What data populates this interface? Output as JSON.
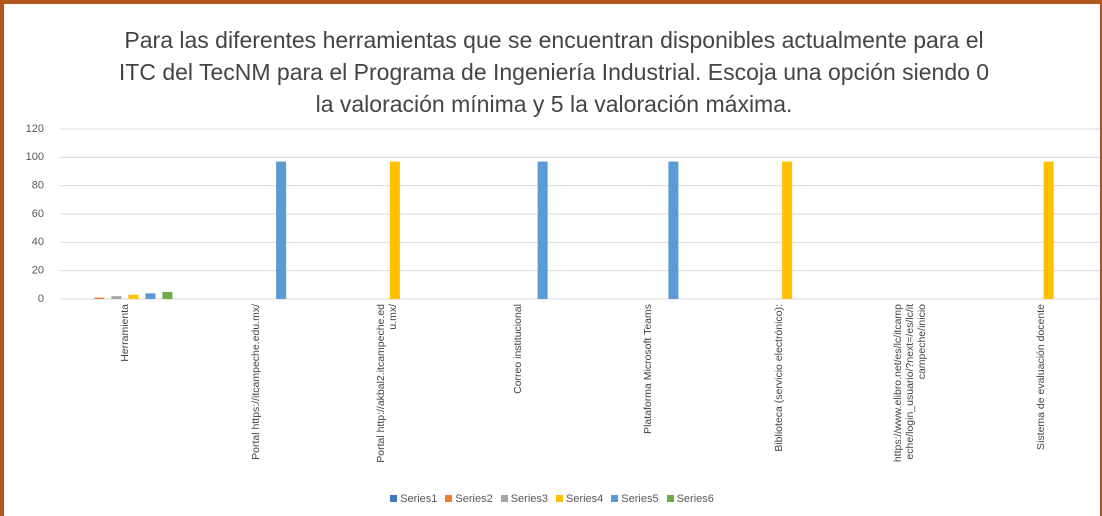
{
  "chart_data": {
    "type": "bar",
    "title": "Para las diferentes herramientas que se encuentran disponibles actualmente para el ITC del TecNM para el Programa de Ingeniería Industrial. Escoja una opción siendo 0 la valoración mínima y 5 la valoración máxima.",
    "categories": [
      "Herramienta",
      "Portal https://itcampeche.edu.mx/",
      "Portal http://akbal2.itcampeche.edu.mx/",
      "Correo institucional",
      "Plataforma Microsoft Teams",
      "Biblioteca (servicio electrónico):",
      "https://www.elibro.net/es/lc/itcampeche/login_usuario/?next=/es/lc/itcampeche/inicio",
      "Sistema de evaluación docente"
    ],
    "series": [
      {
        "name": "Series1",
        "color": "#4472c4",
        "values": [
          0,
          null,
          null,
          null,
          null,
          null,
          null,
          null
        ]
      },
      {
        "name": "Series2",
        "color": "#ed7d31",
        "values": [
          1,
          null,
          null,
          null,
          null,
          null,
          null,
          null
        ]
      },
      {
        "name": "Series3",
        "color": "#a5a5a5",
        "values": [
          2,
          null,
          null,
          null,
          null,
          null,
          null,
          null
        ]
      },
      {
        "name": "Series4",
        "color": "#ffc000",
        "values": [
          3,
          null,
          97,
          null,
          null,
          97,
          null,
          97
        ]
      },
      {
        "name": "Series5",
        "color": "#5b9bd5",
        "values": [
          4,
          97,
          null,
          97,
          97,
          null,
          null,
          null
        ]
      },
      {
        "name": "Series6",
        "color": "#70ad47",
        "values": [
          5,
          null,
          null,
          null,
          null,
          null,
          null,
          null
        ]
      }
    ],
    "ylim": [
      0,
      120
    ],
    "yticks": [
      0,
      20,
      40,
      60,
      80,
      100,
      120
    ],
    "grid": true,
    "legend": "bottom"
  }
}
